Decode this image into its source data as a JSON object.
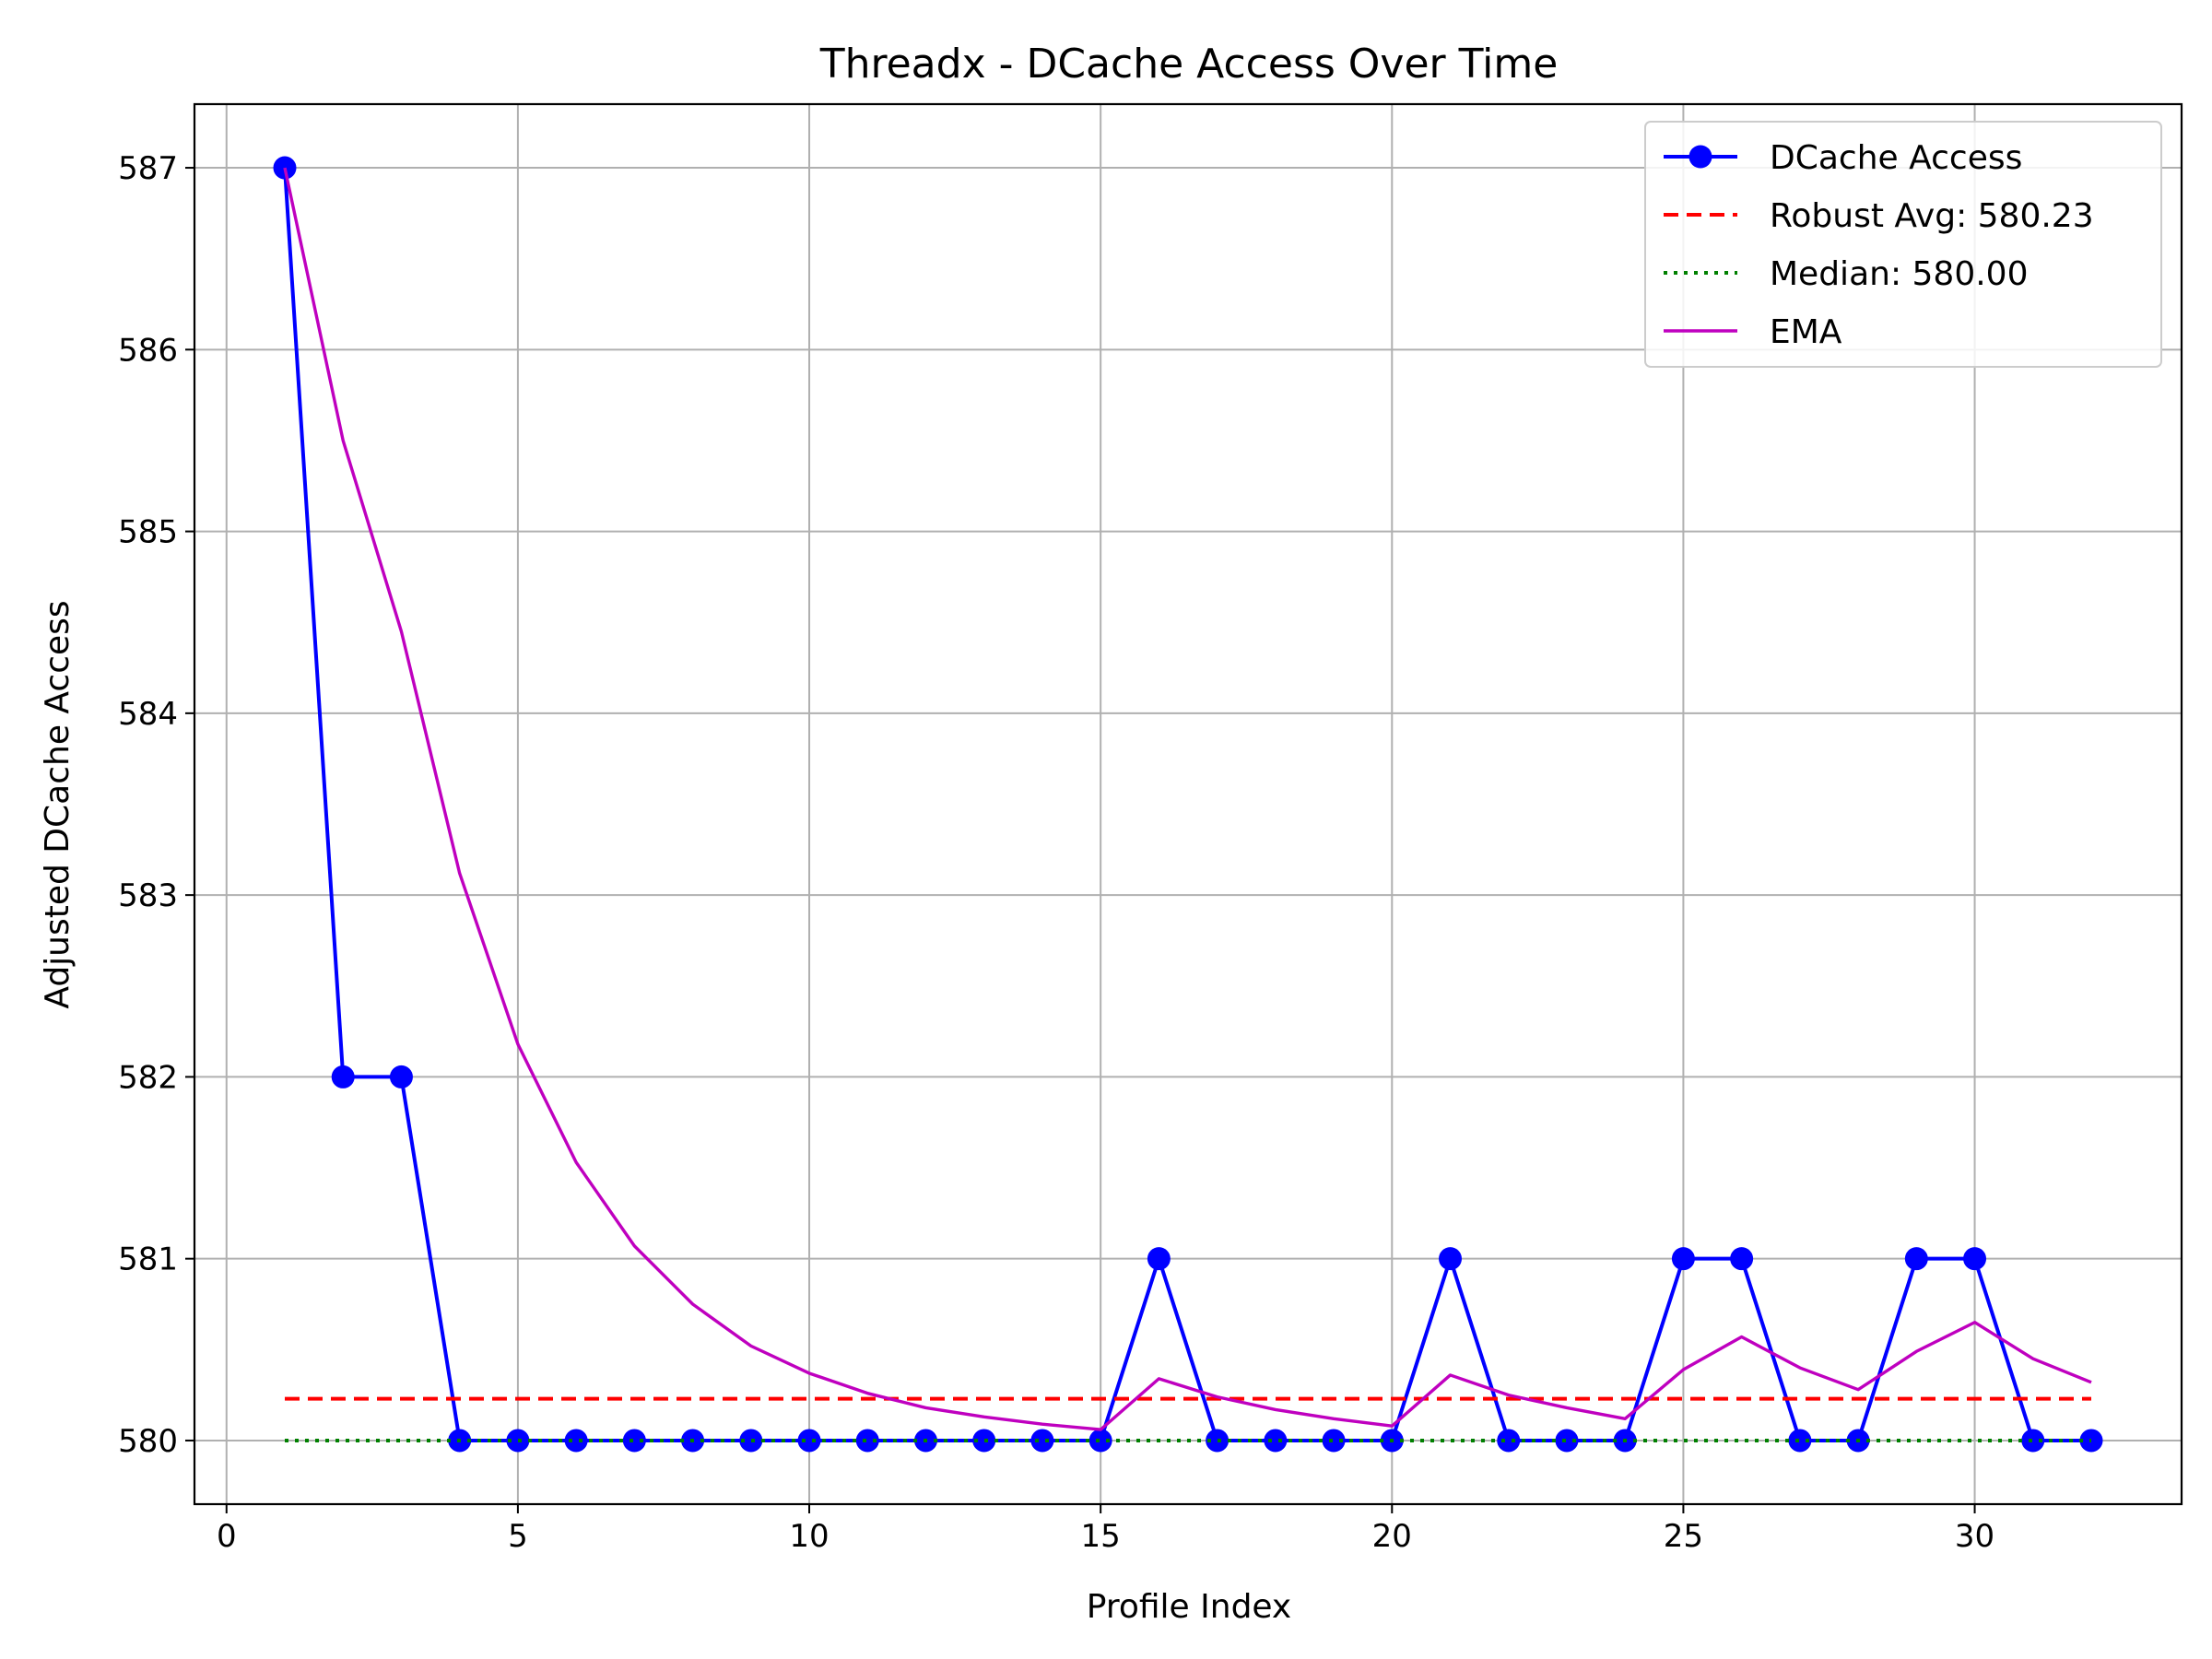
{
  "chart_data": {
    "type": "line",
    "title": "Threadx - DCache Access Over Time",
    "xlabel": "Profile Index",
    "ylabel": "Adjusted DCache Access",
    "xlim": [
      -0.55,
      33.55
    ],
    "ylim": [
      579.65,
      587.35
    ],
    "xticks": [
      0,
      5,
      10,
      15,
      20,
      25,
      30
    ],
    "yticks": [
      580,
      581,
      582,
      583,
      584,
      585,
      586,
      587
    ],
    "grid": true,
    "legend_position": "top-right",
    "x": [
      1,
      2,
      3,
      4,
      5,
      6,
      7,
      8,
      9,
      10,
      11,
      12,
      13,
      14,
      15,
      16,
      17,
      18,
      19,
      20,
      21,
      22,
      23,
      24,
      25,
      26,
      27,
      28,
      29,
      30,
      31,
      32
    ],
    "series": [
      {
        "name": "DCache Access",
        "style": "solid-marker",
        "color": "#0000ff",
        "values": [
          587,
          582,
          582,
          580,
          580,
          580,
          580,
          580,
          580,
          580,
          580,
          580,
          580,
          580,
          580,
          581,
          580,
          580,
          580,
          580,
          581,
          580,
          580,
          580,
          581,
          581,
          580,
          580,
          581,
          581,
          580,
          580
        ]
      },
      {
        "name": "Robust Avg: 580.23",
        "style": "dashed",
        "color": "#ff0000",
        "values": [
          580.23,
          580.23,
          580.23,
          580.23,
          580.23,
          580.23,
          580.23,
          580.23,
          580.23,
          580.23,
          580.23,
          580.23,
          580.23,
          580.23,
          580.23,
          580.23,
          580.23,
          580.23,
          580.23,
          580.23,
          580.23,
          580.23,
          580.23,
          580.23,
          580.23,
          580.23,
          580.23,
          580.23,
          580.23,
          580.23,
          580.23,
          580.23
        ]
      },
      {
        "name": "Median: 580.00",
        "style": "dotted",
        "color": "#008000",
        "values": [
          580,
          580,
          580,
          580,
          580,
          580,
          580,
          580,
          580,
          580,
          580,
          580,
          580,
          580,
          580,
          580,
          580,
          580,
          580,
          580,
          580,
          580,
          580,
          580,
          580,
          580,
          580,
          580,
          580,
          580,
          580,
          580
        ]
      },
      {
        "name": "EMA",
        "style": "solid",
        "color": "#bf00bf",
        "values": [
          587.0,
          585.5,
          584.45,
          583.12,
          582.18,
          581.53,
          581.07,
          580.75,
          580.52,
          580.37,
          580.26,
          580.18,
          580.13,
          580.09,
          580.06,
          580.34,
          580.24,
          580.17,
          580.12,
          580.08,
          580.36,
          580.25,
          580.18,
          580.12,
          580.39,
          580.57,
          580.4,
          580.28,
          580.49,
          580.65,
          580.45,
          580.32
        ]
      }
    ]
  }
}
